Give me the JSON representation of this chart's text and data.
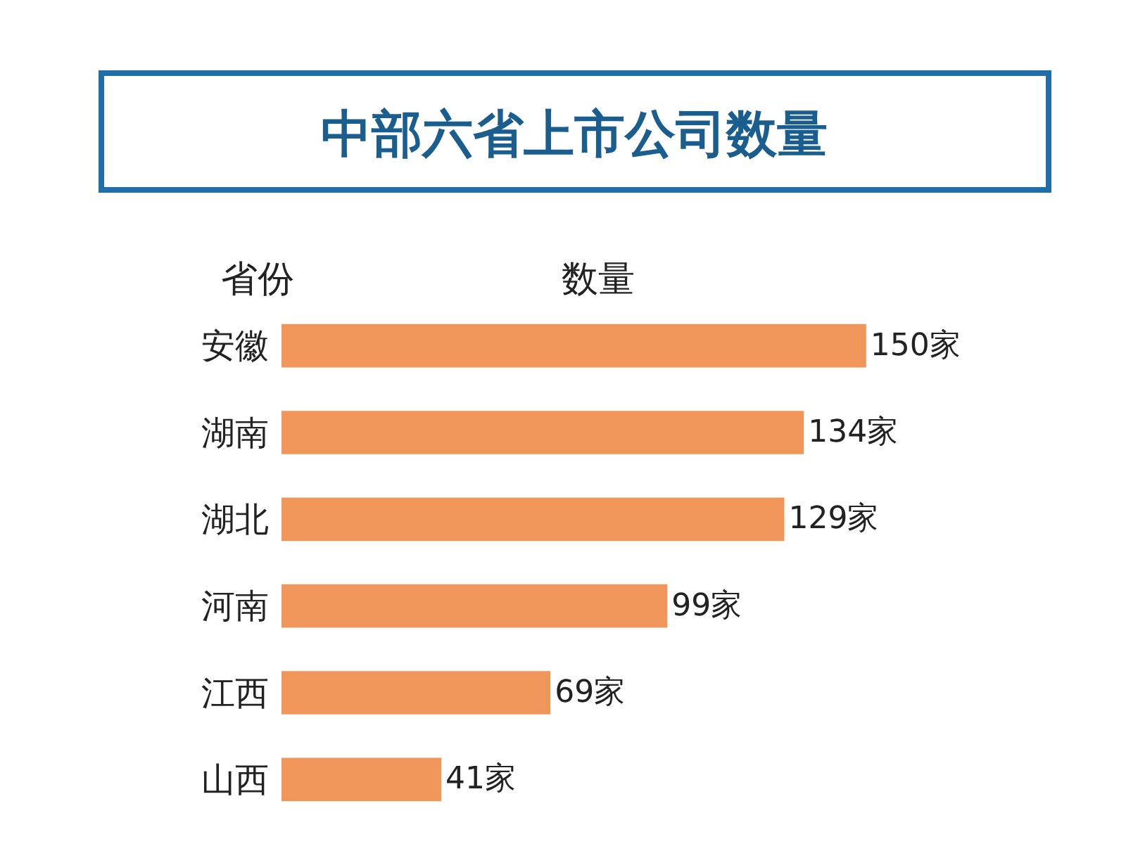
{
  "chart_data": {
    "type": "bar",
    "orientation": "horizontal",
    "title": "中部六省上市公司数量",
    "ylabel": "省份",
    "xlabel": "数量",
    "categories": [
      "安徽",
      "湖南",
      "湖北",
      "河南",
      "江西",
      "山西"
    ],
    "values": [
      150,
      134,
      129,
      99,
      69,
      41
    ],
    "value_labels": [
      "150家",
      "134家",
      "129家",
      "99家",
      "69家",
      "41家"
    ],
    "color": "#f0965a",
    "tick_labels": "y"
  }
}
